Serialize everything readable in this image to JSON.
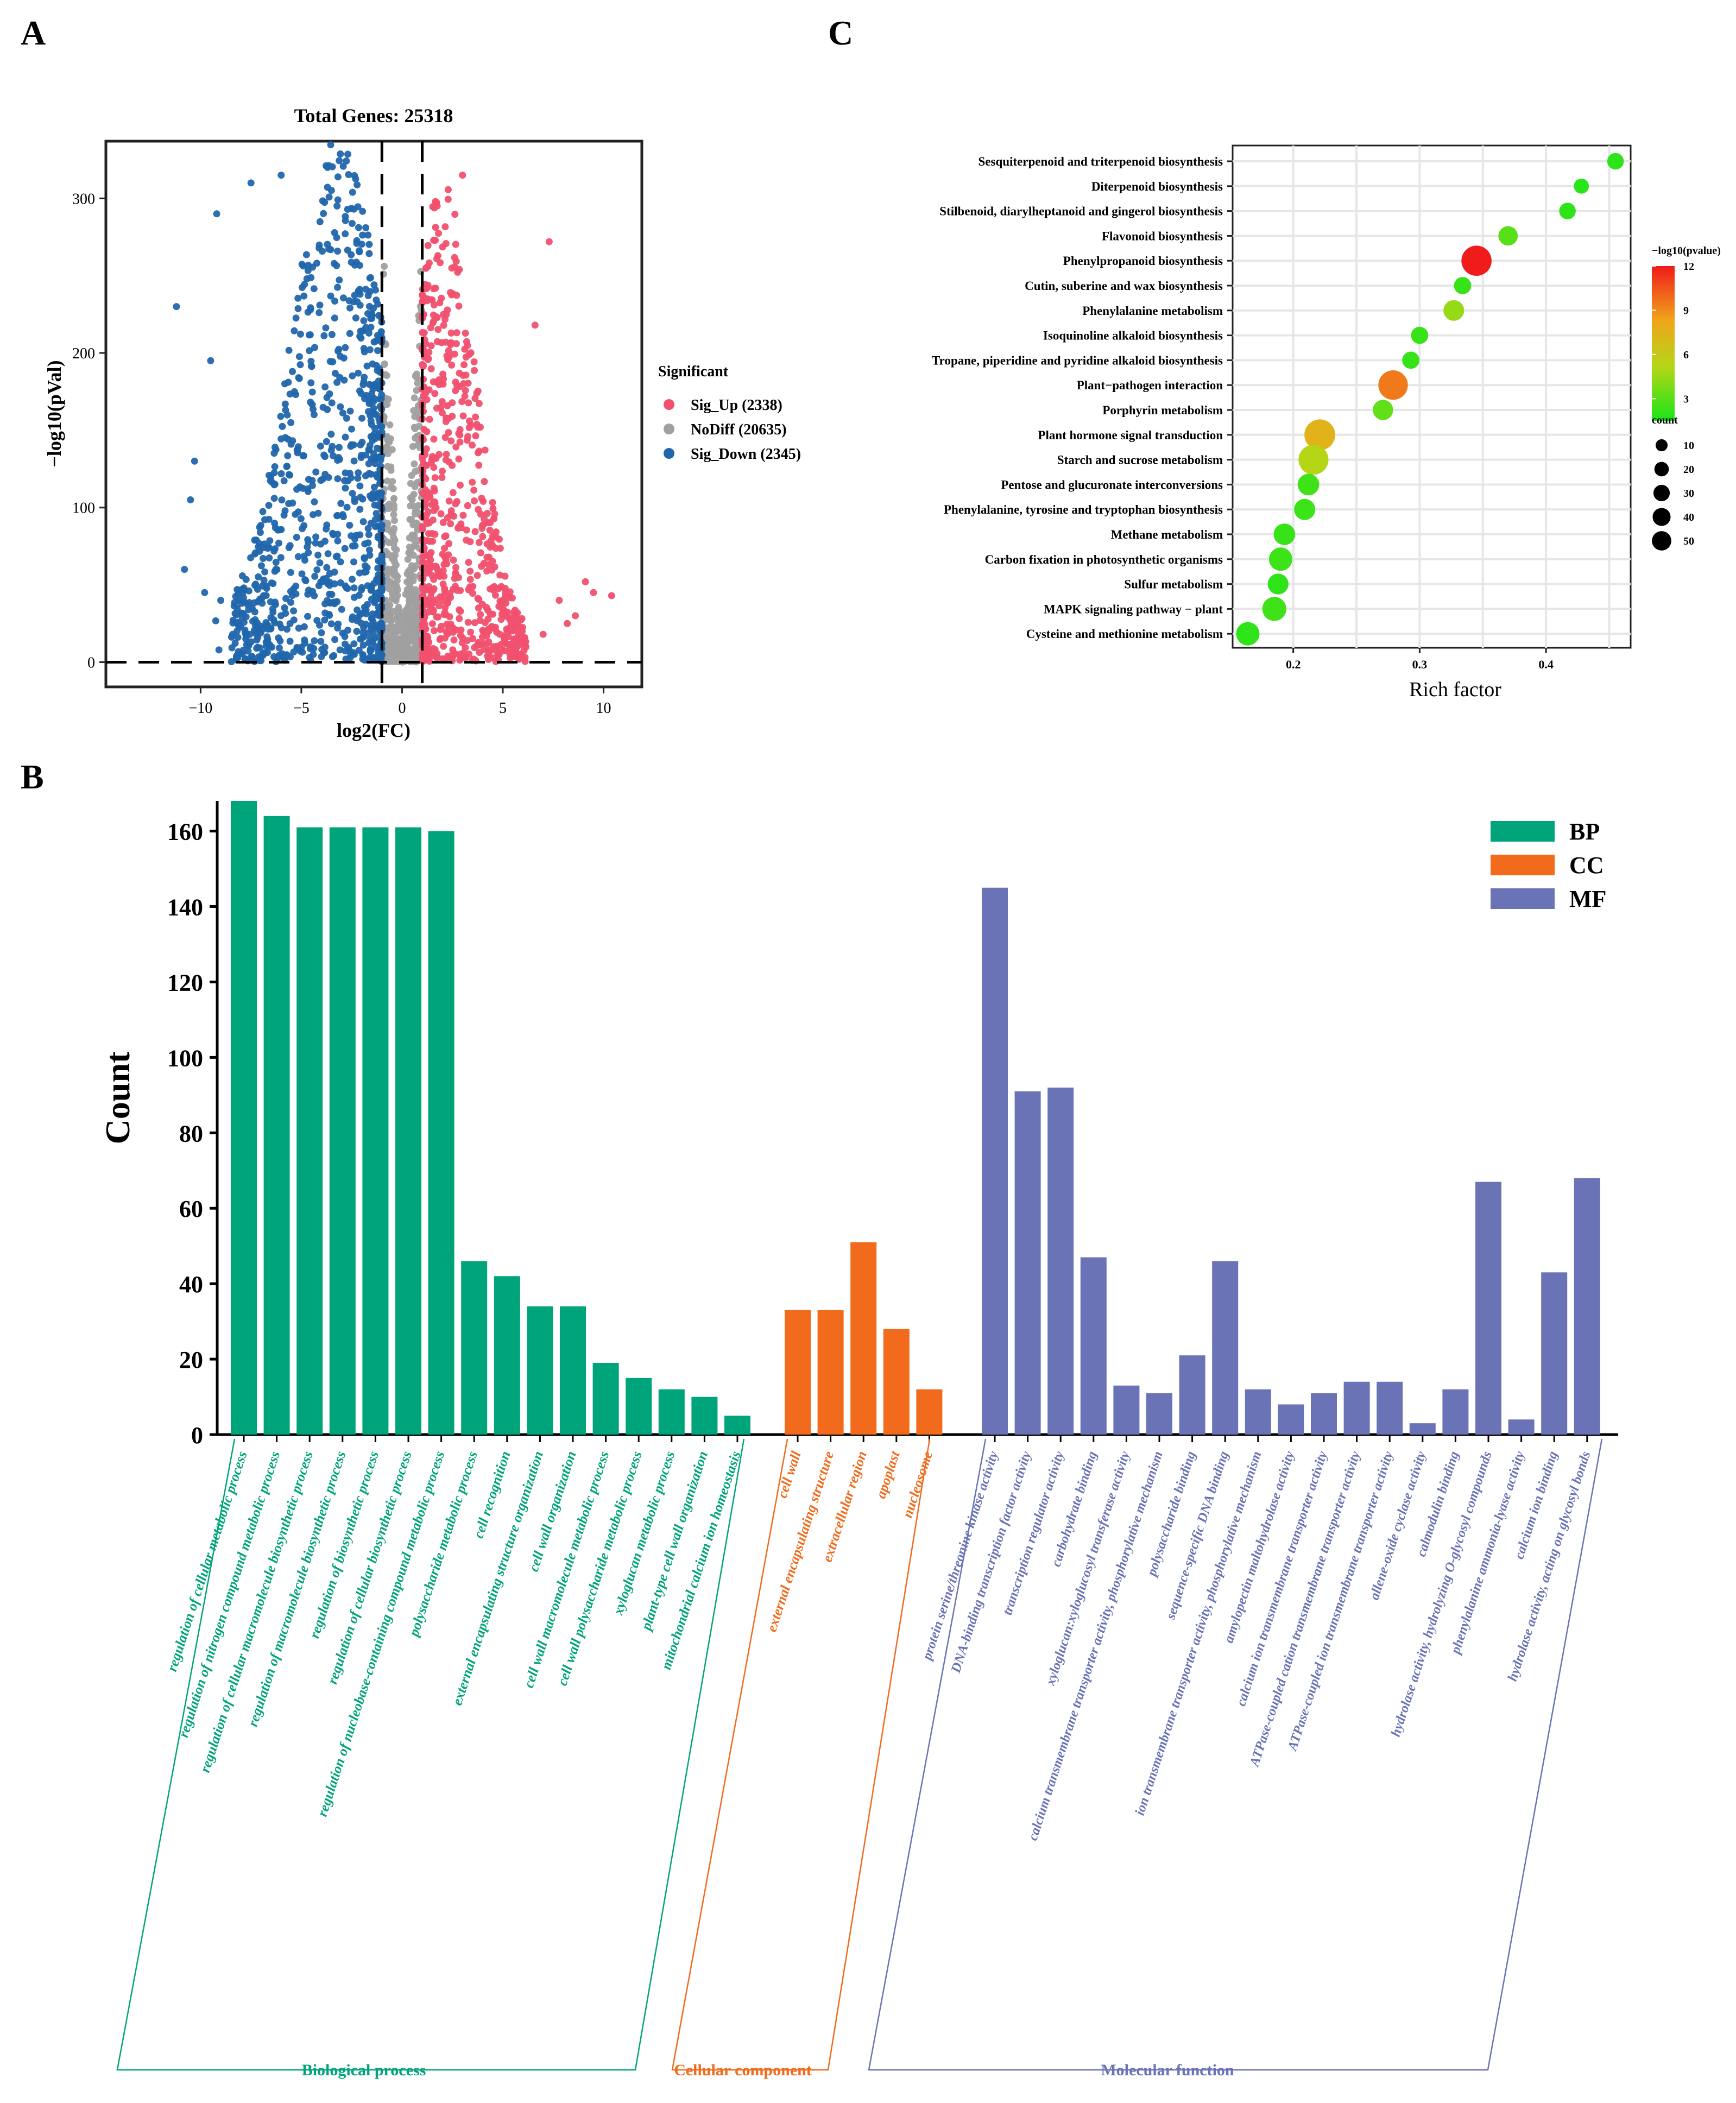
{
  "colors": {
    "up": "#f0506e",
    "nodiff": "#a0a0a0",
    "down": "#2166ac",
    "bp": "#00a47b",
    "cc": "#f26a1b",
    "mf": "#6a73b5",
    "enrich_low": "#19e619",
    "enrich_high": "#f01b1b"
  },
  "panels": {
    "a": "A",
    "b": "B",
    "c": "C"
  },
  "chart_data": [
    {
      "id": "volcano",
      "type": "scatter",
      "title": "Total Genes: 25318",
      "xlabel": "log2(FC)",
      "ylabel": "−log10(pVal)",
      "xlim": [
        -14.7,
        11.9
      ],
      "ylim": [
        -16,
        337
      ],
      "xticks": [
        -10,
        -5,
        0,
        5,
        10
      ],
      "yticks": [
        0,
        100,
        200,
        300
      ],
      "thresholds": {
        "log2fc": [
          -1,
          1
        ],
        "neglog10p": 0
      },
      "legend_title": "Significant",
      "legend": [
        {
          "label": "Sig_Up (2338)",
          "key": "up"
        },
        {
          "label": "NoDiff (20635)",
          "key": "nodiff"
        },
        {
          "label": "Sig_Down (2345)",
          "key": "down"
        }
      ],
      "counts": {
        "up": 2338,
        "nodiff": 20635,
        "down": 2345
      },
      "cap_value": 336,
      "outliers": [
        {
          "x": -11.2,
          "y": 230,
          "g": "down"
        },
        {
          "x": -9.2,
          "y": 290,
          "g": "down"
        },
        {
          "x": -9.5,
          "y": 195,
          "g": "down"
        },
        {
          "x": -10.3,
          "y": 130,
          "g": "down"
        },
        {
          "x": -10.5,
          "y": 105,
          "g": "down"
        },
        {
          "x": -10.8,
          "y": 60,
          "g": "down"
        },
        {
          "x": -9.8,
          "y": 45,
          "g": "down"
        },
        {
          "x": -9.0,
          "y": 40,
          "g": "down"
        },
        {
          "x": -7.5,
          "y": 310,
          "g": "down"
        },
        {
          "x": -6.0,
          "y": 315,
          "g": "down"
        },
        {
          "x": -3.7,
          "y": 320,
          "g": "down"
        },
        {
          "x": 3.0,
          "y": 315,
          "g": "up"
        },
        {
          "x": 7.3,
          "y": 272,
          "g": "up"
        },
        {
          "x": 6.6,
          "y": 218,
          "g": "up"
        },
        {
          "x": 9.1,
          "y": 52,
          "g": "up"
        },
        {
          "x": 9.5,
          "y": 45,
          "g": "up"
        },
        {
          "x": 10.4,
          "y": 43,
          "g": "up"
        },
        {
          "x": 7.8,
          "y": 40,
          "g": "up"
        },
        {
          "x": 8.6,
          "y": 30,
          "g": "up"
        },
        {
          "x": 8.2,
          "y": 25,
          "g": "up"
        },
        {
          "x": 7.0,
          "y": 18,
          "g": "up"
        }
      ]
    },
    {
      "id": "go_bar",
      "type": "bar",
      "ylabel": "Count",
      "ylim": [
        0,
        168
      ],
      "yticks": [
        0,
        20,
        40,
        60,
        80,
        100,
        120,
        140,
        160
      ],
      "legend": [
        {
          "label": "BP",
          "key": "bp"
        },
        {
          "label": "CC",
          "key": "cc"
        },
        {
          "label": "MF",
          "key": "mf"
        }
      ],
      "groups": [
        {
          "key": "bp",
          "name": "Biological process",
          "categories": [
            "regulation of cellular metabolic process",
            "regulation of nitrogen compound metabolic process",
            "regulation of cellular macromolecule biosynthetic process",
            "regulation of macromolecule biosynthetic process",
            "regulation of biosynthetic process",
            "regulation of cellular biosynthetic process",
            "regulation of nucleobase-containing compound metabolic process",
            "polysaccharide metabolic process",
            "cell recognition",
            "external encapsulating structure organization",
            "cell wall organization",
            "cell wall macromolecule metabolic process",
            "cell wall polysaccharide metabolic process",
            "xyloglucan metabolic process",
            "plant-type cell wall organization",
            "mitochondrial calcium ion homeostasis"
          ],
          "values": [
            168,
            164,
            161,
            161,
            161,
            161,
            160,
            46,
            42,
            34,
            34,
            19,
            15,
            12,
            10,
            5
          ]
        },
        {
          "key": "cc",
          "name": "Cellular component",
          "categories": [
            "cell wall",
            "external encapsulating structure",
            "extracellular region",
            "apoplast",
            "nucleosome"
          ],
          "values": [
            33,
            33,
            51,
            28,
            12
          ]
        },
        {
          "key": "mf",
          "name": "Molecular function",
          "categories": [
            "protein serine/threonine kinase activity",
            "DNA-binding transcription factor activity",
            "transcription regulator activity",
            "carbohydrate binding",
            "xyloglucan:xyloglucosyl transferase activity",
            "calcium transmembrane transporter activity, phosphorylative mechanism",
            "polysaccharide binding",
            "sequence-specific DNA binding",
            "ion transmembrane transporter activity, phosphorylative mechanism",
            "amylopectin maltohydrolase activity",
            "calcium ion transmembrane transporter activity",
            "ATPase-coupled cation transmembrane transporter activity",
            "ATPase-coupled ion transmembrane transporter activity",
            "allene-oxide cyclase activity",
            "calmodulin binding",
            "hydrolase activity, hydrolyzing O-glycosyl compounds",
            "phenylalanine ammonia-lyase activity",
            "calcium ion binding",
            "hydrolase activity, acting on glycosyl bonds"
          ],
          "values": [
            145,
            91,
            92,
            47,
            13,
            11,
            21,
            46,
            12,
            8,
            11,
            14,
            14,
            3,
            12,
            67,
            4,
            43,
            68
          ]
        }
      ]
    },
    {
      "id": "kegg_dot",
      "type": "scatter",
      "xlabel": "Rich factor",
      "xlim": [
        0.152,
        0.467
      ],
      "xticks": [
        0.2,
        0.3,
        0.4
      ],
      "xtick_labels": [
        "0.2",
        "0.3",
        "0.4"
      ],
      "color_legend_title": "−log10(pvalue)",
      "color_ticks": [
        3,
        6,
        9,
        12
      ],
      "color_range": [
        1.5,
        12
      ],
      "size_legend_title": "count",
      "size_legend": [
        10,
        20,
        30,
        40,
        50
      ],
      "pathways": [
        {
          "name": "Sesquiterpenoid and triterpenoid biosynthesis",
          "rich": 0.455,
          "count": 5,
          "logp": 2.0
        },
        {
          "name": "Diterpenoid biosynthesis",
          "rich": 0.428,
          "count": 3,
          "logp": 1.8
        },
        {
          "name": "Stilbenoid, diarylheptanoid and gingerol biosynthesis",
          "rich": 0.417,
          "count": 5,
          "logp": 2.0
        },
        {
          "name": "Flavonoid biosynthesis",
          "rich": 0.37,
          "count": 10,
          "logp": 3.0
        },
        {
          "name": "Phenylpropanoid biosynthesis",
          "rich": 0.345,
          "count": 45,
          "logp": 12.0
        },
        {
          "name": "Cutin, suberine and wax biosynthesis",
          "rich": 0.334,
          "count": 6,
          "logp": 2.2
        },
        {
          "name": "Phenylalanine metabolism",
          "rich": 0.327,
          "count": 13,
          "logp": 4.5
        },
        {
          "name": "Isoquinoline alkaloid biosynthesis",
          "rich": 0.3,
          "count": 6,
          "logp": 2.2
        },
        {
          "name": "Tropane, piperidine and pyridine alkaloid biosynthesis",
          "rich": 0.293,
          "count": 6,
          "logp": 2.2
        },
        {
          "name": "Plant−pathogen interaction",
          "rich": 0.279,
          "count": 42,
          "logp": 9.5
        },
        {
          "name": "Porphyrin metabolism",
          "rich": 0.271,
          "count": 12,
          "logp": 3.2
        },
        {
          "name": "Plant hormone signal transduction",
          "rich": 0.221,
          "count": 48,
          "logp": 7.5
        },
        {
          "name": "Starch and sucrose metabolism",
          "rich": 0.216,
          "count": 44,
          "logp": 5.2
        },
        {
          "name": "Pentose and glucuronate interconversions",
          "rich": 0.212,
          "count": 15,
          "logp": 2.4
        },
        {
          "name": "Phenylalanine, tyrosine and tryptophan biosynthesis",
          "rich": 0.209,
          "count": 14,
          "logp": 2.3
        },
        {
          "name": "Methane metabolism",
          "rich": 0.193,
          "count": 15,
          "logp": 2.2
        },
        {
          "name": "Carbon fixation in photosynthetic organisms",
          "rich": 0.19,
          "count": 20,
          "logp": 2.3
        },
        {
          "name": "Sulfur metabolism",
          "rich": 0.188,
          "count": 13,
          "logp": 2.0
        },
        {
          "name": "MAPK signaling pathway − plant",
          "rich": 0.185,
          "count": 22,
          "logp": 2.4
        },
        {
          "name": "Cysteine and methionine metabolism",
          "rich": 0.164,
          "count": 20,
          "logp": 2.0
        }
      ]
    }
  ]
}
